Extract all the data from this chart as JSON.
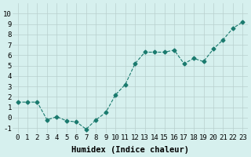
{
  "x": [
    0,
    1,
    2,
    3,
    4,
    5,
    6,
    7,
    8,
    9,
    10,
    11,
    12,
    13,
    14,
    15,
    16,
    17,
    18,
    19,
    20,
    21,
    22,
    23
  ],
  "y": [
    1.5,
    1.5,
    1.5,
    -0.2,
    0.1,
    -0.3,
    -0.4,
    -1.1,
    -0.2,
    0.5,
    2.2,
    3.2,
    5.2,
    6.3,
    6.3,
    6.3,
    6.5,
    5.2,
    5.7,
    5.4,
    6.6,
    7.5,
    8.6,
    9.2
  ],
  "xlim": [
    -0.5,
    23.5
  ],
  "ylim": [
    -1.5,
    11
  ],
  "yticks": [
    -1,
    0,
    1,
    2,
    3,
    4,
    5,
    6,
    7,
    8,
    9,
    10
  ],
  "xticks": [
    0,
    1,
    2,
    3,
    4,
    5,
    6,
    7,
    8,
    9,
    10,
    11,
    12,
    13,
    14,
    15,
    16,
    17,
    18,
    19,
    20,
    21,
    22,
    23
  ],
  "xlabel": "Humidex (Indice chaleur)",
  "line_color": "#1a7a6e",
  "marker": "D",
  "marker_size": 2.5,
  "line_width": 0.8,
  "bg_color": "#d6f0ee",
  "grid_color": "#b8d0ce",
  "tick_fontsize": 6.5,
  "xlabel_fontsize": 7.5
}
